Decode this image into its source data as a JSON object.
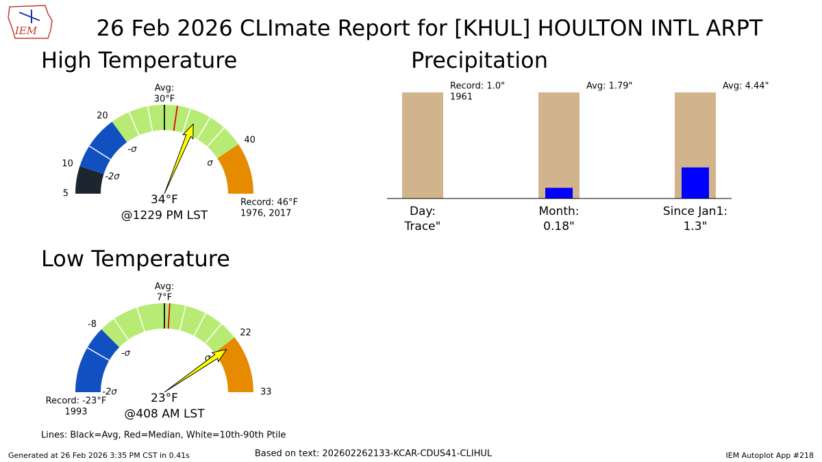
{
  "title": "26 Feb 2026 CLImate Report for [KHUL] HOULTON INTL ARPT",
  "logo_text": "IEM",
  "chart_data": [
    {
      "type": "gauge",
      "title": "High Temperature",
      "min": 5,
      "max": 46,
      "avg": 30,
      "median": 31.5,
      "avg_label": [
        "Avg:",
        "30°F"
      ],
      "value": 34,
      "value_label": "34°F",
      "time_label": "@1229 PM LST",
      "record": 46,
      "record_label": [
        "Record: 46°F",
        "1976, 2017"
      ],
      "ticks": [
        5,
        10,
        20,
        40
      ],
      "sigma": [
        {
          "value": 10,
          "label": "-2σ"
        },
        {
          "value": 20,
          "label": "-σ"
        },
        {
          "value": 40,
          "label": "σ"
        }
      ],
      "band_edges": [
        5,
        10,
        20,
        40,
        46
      ],
      "band_colors": [
        "#1b2631",
        "#1150c0",
        "#b8eb74",
        "#e68a00"
      ],
      "percentiles": [
        14,
        23.5,
        27,
        33,
        35.5,
        37.5
      ]
    },
    {
      "type": "gauge",
      "title": "Low Temperature",
      "min": -23,
      "max": 33,
      "avg": 7,
      "median": 8,
      "avg_label": [
        "Avg:",
        "7°F"
      ],
      "value": 23,
      "value_label": "23°F",
      "time_label": "@408 AM LST",
      "record": -23,
      "record_label": [
        "Record: -23°F",
        "1993"
      ],
      "ticks": [
        -8,
        22,
        33
      ],
      "sigma": [
        {
          "value": -23,
          "label": "-2σ"
        },
        {
          "value": -8,
          "label": "-σ"
        },
        {
          "value": 22,
          "label": "σ"
        }
      ],
      "band_edges": [
        -23,
        -23,
        -8,
        22,
        33
      ],
      "band_colors": [
        "#1b2631",
        "#1150c0",
        "#b8eb74",
        "#e68a00"
      ],
      "percentiles": [
        -13,
        -4.5,
        1,
        11,
        15,
        18.5
      ]
    },
    {
      "type": "bar",
      "title": "Precipitation",
      "categories": [
        "Day:",
        "Month:",
        "Since Jan1:"
      ],
      "observed": {
        "values": [
          0,
          0.18,
          1.3
        ],
        "value_labels": [
          "Trace\"",
          "0.18\"",
          "1.3\""
        ],
        "color": "#0000ff"
      },
      "reference": {
        "values": [
          1.0,
          1.79,
          4.44
        ],
        "labels": [
          [
            "Record: 1.0\"",
            "1961"
          ],
          [
            "Avg: 1.79\""
          ],
          [
            "Avg: 4.44\""
          ]
        ],
        "color": "#d2b48c"
      }
    }
  ],
  "legend_note": "Lines: Black=Avg, Red=Median, White=10th-90th Ptile",
  "footer": {
    "generated": "Generated at 26 Feb 2026 3:35 PM CST in 0.41s",
    "source": "Based on text: 202602262133-KCAR-CDUS41-CLIHUL",
    "app": "IEM Autoplot App #218"
  }
}
